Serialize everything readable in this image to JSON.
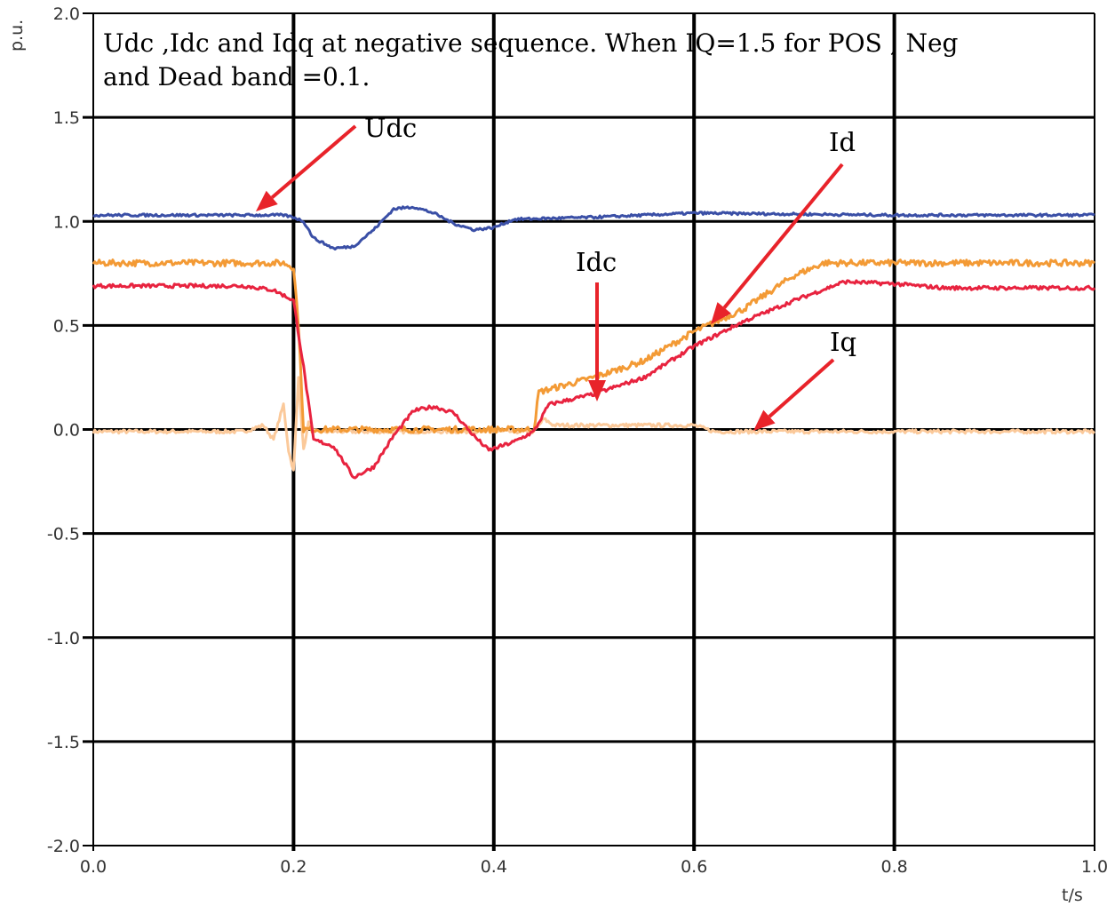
{
  "chart_data": {
    "type": "line",
    "title_lines": [
      "Udc ,Idc and Idq at negative sequence. When IQ=1.5 for  POS , Neg",
      "and Dead band =0.1."
    ],
    "xlabel": "t/s",
    "ylabel": "p.u.",
    "xlim": [
      0.0,
      1.0
    ],
    "ylim": [
      -2.0,
      2.0
    ],
    "grid": true,
    "xticks": [
      "0.0",
      "0.2",
      "0.4",
      "0.6",
      "0.8",
      "1.0"
    ],
    "yticks": [
      "2.0",
      "1.5",
      "1.0",
      "0.5",
      "0.0",
      "-0.5",
      "-1.0",
      "-1.5",
      "-2.0"
    ],
    "series": [
      {
        "name": "Udc",
        "color": "#3a4fa6",
        "x": [
          0,
          0.1,
          0.19,
          0.2,
          0.21,
          0.22,
          0.24,
          0.26,
          0.28,
          0.3,
          0.32,
          0.34,
          0.36,
          0.38,
          0.4,
          0.42,
          0.5,
          0.6,
          0.8,
          1.0
        ],
        "y": [
          1.03,
          1.03,
          1.03,
          1.02,
          1.0,
          0.92,
          0.87,
          0.88,
          0.96,
          1.06,
          1.07,
          1.04,
          0.99,
          0.96,
          0.97,
          1.01,
          1.02,
          1.04,
          1.03,
          1.03
        ]
      },
      {
        "name": "Id",
        "color": "#f39a35",
        "x": [
          0,
          0.1,
          0.19,
          0.2,
          0.205,
          0.21,
          0.22,
          0.3,
          0.44,
          0.445,
          0.5,
          0.55,
          0.6,
          0.65,
          0.7,
          0.73,
          0.8,
          1.0
        ],
        "y": [
          0.8,
          0.8,
          0.8,
          0.78,
          0.5,
          0.0,
          0.0,
          0.0,
          0.0,
          0.18,
          0.25,
          0.33,
          0.47,
          0.58,
          0.74,
          0.8,
          0.8,
          0.8
        ]
      },
      {
        "name": "Idc",
        "color": "#e8233f",
        "x": [
          0,
          0.15,
          0.18,
          0.2,
          0.21,
          0.22,
          0.24,
          0.26,
          0.28,
          0.3,
          0.32,
          0.34,
          0.36,
          0.38,
          0.395,
          0.42,
          0.44,
          0.455,
          0.5,
          0.55,
          0.6,
          0.65,
          0.7,
          0.75,
          0.8,
          0.85,
          1.0
        ],
        "y": [
          0.69,
          0.69,
          0.67,
          0.62,
          0.3,
          -0.05,
          -0.08,
          -0.23,
          -0.18,
          -0.03,
          0.09,
          0.11,
          0.08,
          -0.03,
          -0.1,
          -0.06,
          -0.01,
          0.12,
          0.17,
          0.25,
          0.4,
          0.52,
          0.62,
          0.71,
          0.7,
          0.68,
          0.68
        ]
      },
      {
        "name": "Iq",
        "color": "#fbc99a",
        "x": [
          0,
          0.15,
          0.17,
          0.18,
          0.19,
          0.195,
          0.2,
          0.205,
          0.21,
          0.215,
          0.22,
          0.44,
          0.45,
          0.46,
          0.6,
          0.62,
          1.0
        ],
        "y": [
          -0.01,
          -0.01,
          0.02,
          -0.05,
          0.12,
          -0.1,
          -0.2,
          0.25,
          -0.1,
          0.03,
          -0.01,
          -0.01,
          0.05,
          0.02,
          0.02,
          -0.01,
          -0.01
        ]
      }
    ],
    "annotations": [
      {
        "label": "Udc",
        "target_series": "Udc"
      },
      {
        "label": "Id",
        "target_series": "Id"
      },
      {
        "label": "Idc",
        "target_series": "Idc"
      },
      {
        "label": "Iq",
        "target_series": "Iq"
      }
    ],
    "annotation_arrow_color": "#e8232a"
  }
}
